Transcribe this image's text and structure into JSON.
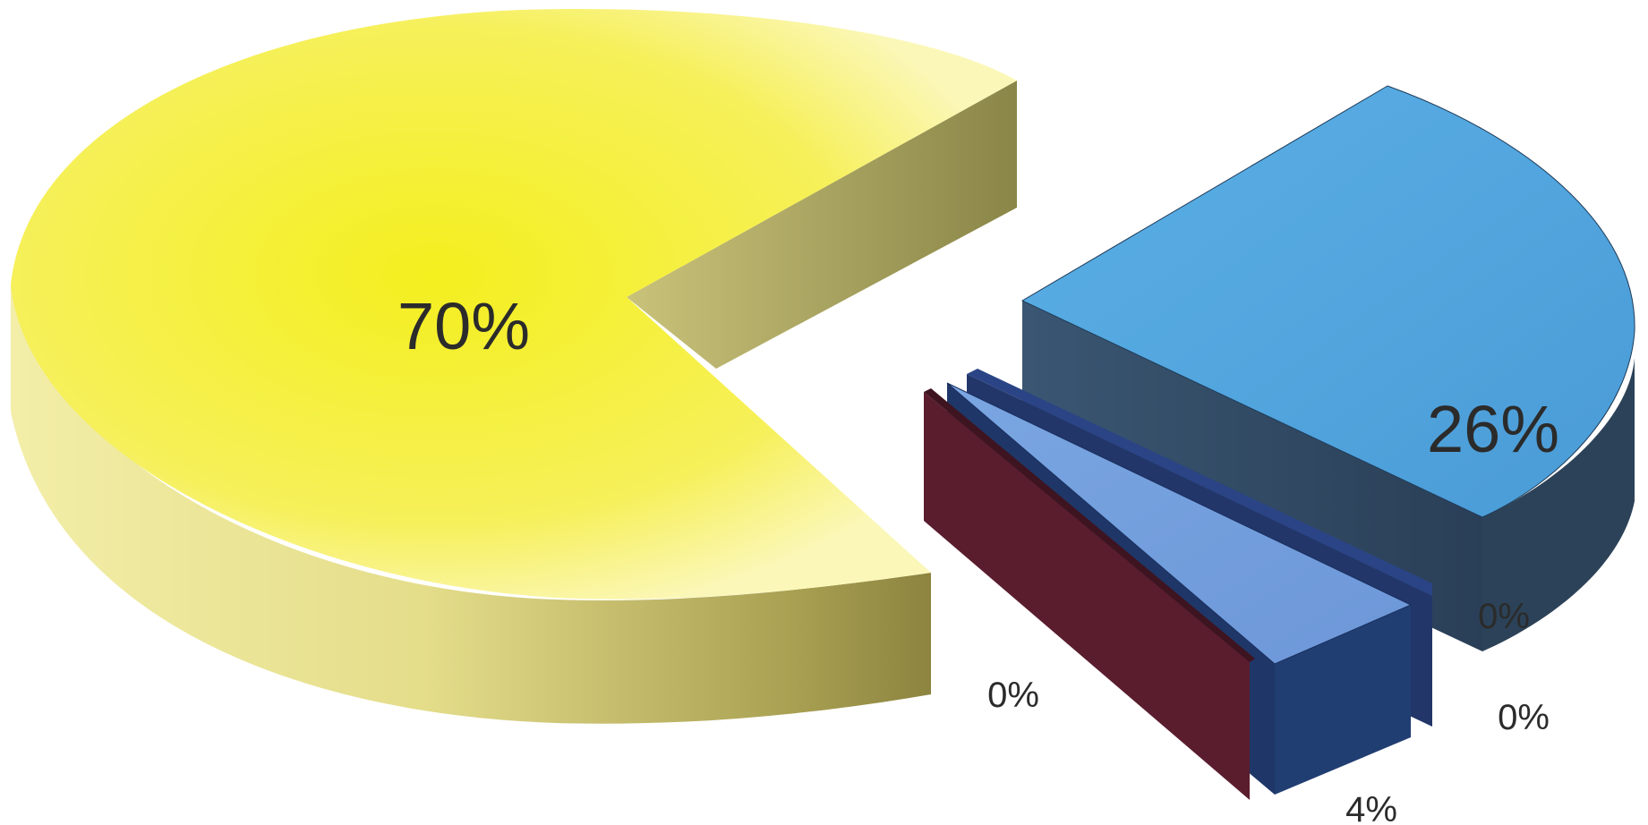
{
  "chart_data": {
    "type": "pie",
    "style": "3d-exploded",
    "slices": [
      {
        "label": "70%",
        "value": 70,
        "color": "#f2ef2a"
      },
      {
        "label": "26%",
        "value": 26,
        "color": "#5aaee3"
      },
      {
        "label": "0%",
        "value": 0,
        "color": "#2e4a6e"
      },
      {
        "label": "4%",
        "value": 4,
        "color": "#6a9ad8"
      },
      {
        "label": "0%",
        "value": 0,
        "color": "#23397a"
      },
      {
        "label": "0%",
        "value": 0,
        "color": "#6a1f33"
      }
    ]
  }
}
